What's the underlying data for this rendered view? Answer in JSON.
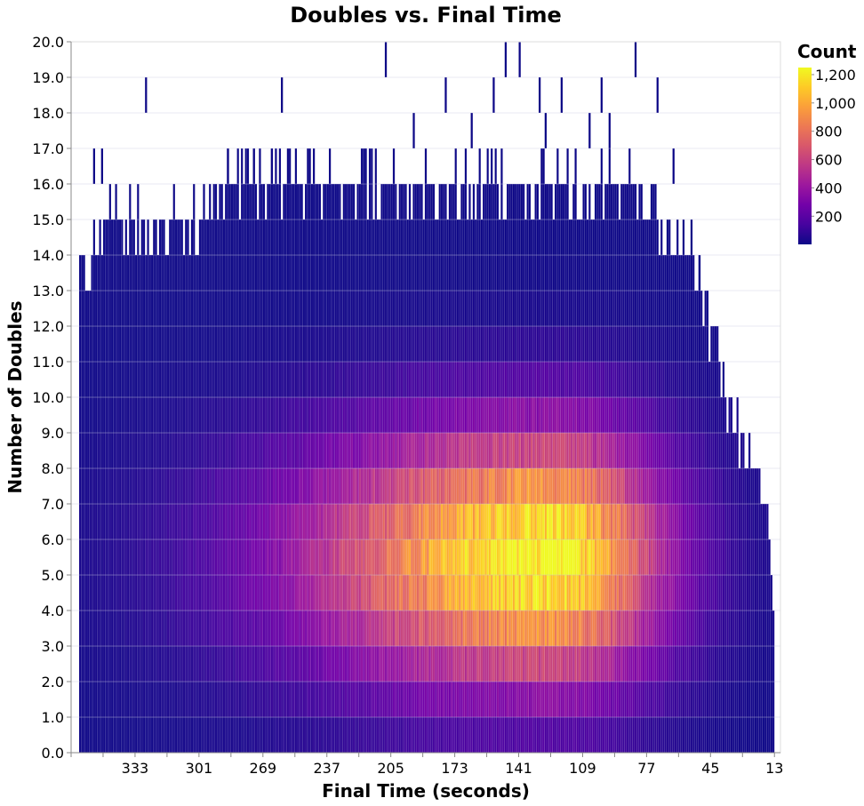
{
  "chart_data": {
    "type": "heatmap",
    "title": "Doubles vs. Final Time",
    "xlabel": "Final Time (seconds)",
    "ylabel": "Number of Doubles",
    "x_reversed": true,
    "xlim": [
      365,
      10
    ],
    "ylim": [
      0,
      20
    ],
    "x_ticks": [
      333,
      301,
      269,
      237,
      205,
      173,
      141,
      109,
      77,
      45,
      13
    ],
    "y_ticks": [
      "0.0",
      "1.0",
      "2.0",
      "3.0",
      "4.0",
      "5.0",
      "6.0",
      "7.0",
      "8.0",
      "9.0",
      "10.0",
      "11.0",
      "12.0",
      "13.0",
      "14.0",
      "15.0",
      "16.0",
      "17.0",
      "18.0",
      "19.0",
      "20.0"
    ],
    "grid": true,
    "legend": {
      "title": "Count",
      "ticks": [
        200,
        400,
        600,
        800,
        1000,
        1200
      ],
      "tick_labels": [
        "200",
        "400",
        "600",
        "800",
        "1,000",
        "1,200"
      ],
      "min": 1,
      "max": 1250,
      "position": "right"
    },
    "colorscheme": [
      "#0d0887",
      "#46039f",
      "#7201a8",
      "#9c179e",
      "#bd3786",
      "#d8576b",
      "#ed7953",
      "#fb9f3a",
      "#fdca26",
      "#f0f921"
    ],
    "bin_width": 1,
    "bin_height": 1,
    "density_model": {
      "x_range": [
        13,
        360
      ],
      "peak_time": 125,
      "time_sigma_low": 40,
      "time_sigma_high": 85,
      "peak_doubles": 5.5,
      "doubles_sigma": 2.5,
      "peak_count": 1250,
      "floor_count": 2
    },
    "max_doubles_envelope": [
      [
        360,
        13
      ],
      [
        355,
        14
      ],
      [
        345,
        15
      ],
      [
        300,
        15
      ],
      [
        290,
        16
      ],
      [
        200,
        16
      ],
      [
        160,
        16
      ],
      [
        100,
        16
      ],
      [
        80,
        16
      ],
      [
        70,
        15
      ],
      [
        60,
        14
      ],
      [
        50,
        13
      ],
      [
        40,
        11
      ],
      [
        30,
        9
      ],
      [
        20,
        8
      ],
      [
        13,
        5
      ]
    ],
    "outliers": [
      {
        "x": 353,
        "y": 16
      },
      {
        "x": 349,
        "y": 16
      },
      {
        "x": 327,
        "y": 18
      },
      {
        "x": 286,
        "y": 16
      },
      {
        "x": 273,
        "y": 16
      },
      {
        "x": 264,
        "y": 16
      },
      {
        "x": 259,
        "y": 18
      },
      {
        "x": 217,
        "y": 16
      },
      {
        "x": 207,
        "y": 19
      },
      {
        "x": 193,
        "y": 17
      },
      {
        "x": 177,
        "y": 18
      },
      {
        "x": 164,
        "y": 17
      },
      {
        "x": 153,
        "y": 18
      },
      {
        "x": 147,
        "y": 19
      },
      {
        "x": 140,
        "y": 19
      },
      {
        "x": 130,
        "y": 18
      },
      {
        "x": 127,
        "y": 17
      },
      {
        "x": 119,
        "y": 18
      },
      {
        "x": 105,
        "y": 17
      },
      {
        "x": 99,
        "y": 18
      },
      {
        "x": 95,
        "y": 17
      },
      {
        "x": 82,
        "y": 19
      },
      {
        "x": 71,
        "y": 18
      },
      {
        "x": 63,
        "y": 16
      },
      {
        "x": 54,
        "y": 14
      },
      {
        "x": 50,
        "y": 13
      }
    ]
  }
}
